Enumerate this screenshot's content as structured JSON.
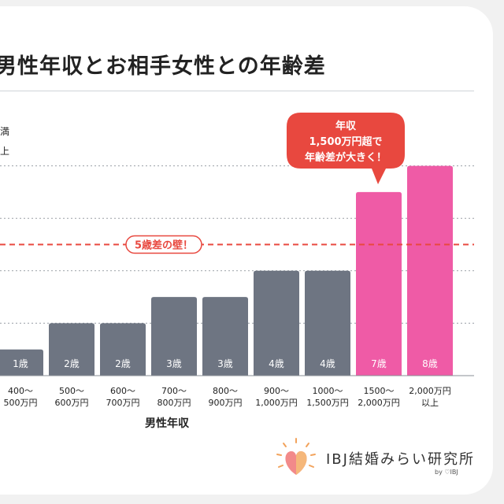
{
  "page": {
    "title": "男性年収とお相手女性との年齢差",
    "legend_fragments": [
      "満",
      "上"
    ],
    "wall_label": "5歳差の壁！",
    "callout_lines": [
      "年収",
      "1,500万円超で",
      "年齢差が大きく！"
    ],
    "logo_text": "IBJ結婚みらい研究所",
    "logo_by": "by ♡IBJ"
  },
  "chart_data": {
    "type": "bar",
    "xlabel": "男性年収",
    "categories": [
      [
        "400〜",
        "500万円"
      ],
      [
        "500〜",
        "600万円"
      ],
      [
        "600〜",
        "700万円"
      ],
      [
        "700〜",
        "800万円"
      ],
      [
        "800〜",
        "900万円"
      ],
      [
        "900〜",
        "1,000万円"
      ],
      [
        "1000〜",
        "1,500万円"
      ],
      [
        "1500〜",
        "2,000万円"
      ],
      [
        "2,000万円",
        "以上"
      ]
    ],
    "values": [
      1,
      2,
      2,
      3,
      3,
      4,
      4,
      7,
      8
    ],
    "value_labels": [
      "1歳",
      "2歳",
      "2歳",
      "3歳",
      "3歳",
      "4歳",
      "4歳",
      "7歳",
      "8歳"
    ],
    "highlight_from_index": 7,
    "reference_line": 5,
    "ylim": [
      0,
      9
    ],
    "colors": {
      "bar": "#6e7582",
      "highlight": "#ef5ba6",
      "wall": "#e8483f",
      "grid": "#9a9fa6"
    }
  }
}
